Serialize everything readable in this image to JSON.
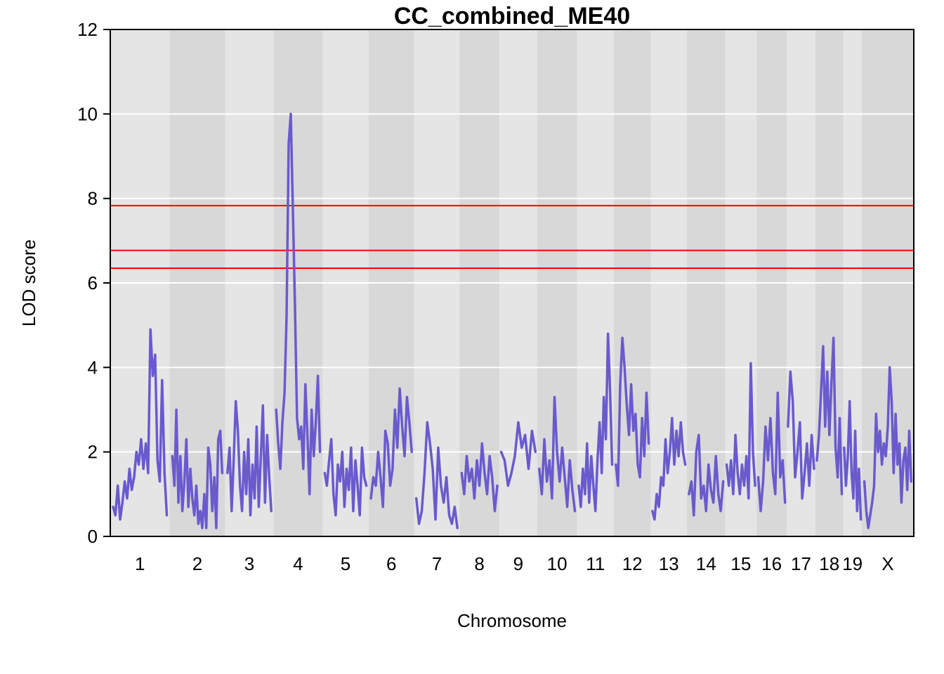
{
  "chart_data": {
    "type": "line",
    "title": "CC_combined_ME40",
    "xlabel": "Chromosome",
    "ylabel": "LOD score",
    "ylim": [
      0,
      12
    ],
    "yticks": [
      "0",
      "2",
      "4",
      "6",
      "8",
      "10",
      "12"
    ],
    "grid": true,
    "chromosomes": [
      "1",
      "2",
      "3",
      "4",
      "5",
      "6",
      "7",
      "8",
      "9",
      "10",
      "11",
      "12",
      "13",
      "14",
      "15",
      "16",
      "17",
      "18",
      "19",
      "X"
    ],
    "chromosome_widths": [
      195,
      182,
      160,
      160,
      152,
      149,
      150,
      130,
      125,
      130,
      122,
      120,
      120,
      125,
      104,
      98,
      95,
      91,
      61,
      171
    ],
    "thresholds": [
      7.83,
      6.77,
      6.35
    ],
    "series": [
      {
        "color": "#6a5acd",
        "profiles": [
          [
            0.7,
            0.5,
            1.2,
            0.4,
            0.8,
            1.3,
            0.9,
            1.6,
            1.1,
            1.4,
            2.0,
            1.7,
            2.3,
            1.6,
            2.2,
            1.5,
            4.9,
            3.8,
            4.3,
            1.8,
            1.3,
            3.7,
            1.5,
            0.5
          ],
          [
            1.9,
            1.2,
            3.0,
            0.8,
            1.9,
            0.6,
            1.3,
            2.3,
            0.7,
            1.6,
            0.9,
            0.5,
            1.2,
            0.3,
            0.6,
            0.2,
            1.0,
            0.2,
            2.1,
            1.7,
            0.6,
            1.4,
            0.2,
            2.3,
            2.5,
            1.5
          ],
          [
            1.5,
            2.1,
            0.6,
            1.8,
            3.2,
            2.5,
            1.2,
            0.6,
            2.0,
            1.0,
            2.3,
            0.5,
            1.7,
            0.9,
            2.6,
            0.7,
            1.9,
            3.1,
            0.8,
            2.4,
            1.4,
            0.6
          ],
          [
            3.0,
            2.2,
            1.6,
            2.7,
            3.4,
            5.2,
            9.3,
            10.0,
            7.8,
            5.5,
            2.8,
            2.3,
            2.6,
            1.6,
            3.6,
            2.4,
            1.0,
            3.0,
            1.9,
            2.7,
            3.8,
            2.0
          ],
          [
            1.5,
            1.2,
            1.8,
            2.3,
            1.0,
            0.5,
            1.7,
            1.3,
            2.0,
            0.7,
            1.6,
            1.1,
            2.1,
            0.6,
            1.8,
            1.2,
            0.5,
            2.1,
            1.4,
            1.2
          ],
          [
            0.9,
            1.4,
            1.2,
            2.0,
            1.4,
            0.7,
            2.5,
            2.2,
            1.2,
            1.6,
            3.0,
            2.1,
            3.5,
            2.6,
            1.9,
            3.3,
            2.7,
            2.0
          ],
          [
            0.9,
            0.3,
            0.6,
            1.5,
            2.7,
            2.2,
            1.6,
            0.4,
            2.1,
            1.2,
            0.8,
            1.4,
            0.5,
            0.3,
            0.7,
            0.2
          ],
          [
            1.5,
            1.0,
            1.9,
            1.3,
            1.6,
            0.9,
            1.8,
            1.2,
            2.2,
            1.5,
            1.0,
            1.9,
            1.4,
            0.6,
            1.2
          ],
          [
            2.0,
            1.8,
            1.2,
            1.5,
            1.9,
            2.7,
            2.1,
            2.4,
            1.6,
            2.5,
            2.0
          ],
          [
            1.6,
            1.0,
            2.3,
            1.3,
            1.8,
            0.9,
            3.3,
            2.0,
            1.3,
            2.1,
            1.4,
            0.7,
            1.8,
            1.1,
            0.6
          ],
          [
            1.2,
            0.7,
            1.6,
            1.0,
            2.2,
            0.8,
            1.9,
            1.2,
            0.6,
            1.8,
            2.7,
            1.5,
            3.3,
            2.3,
            4.8,
            3.5,
            1.7
          ],
          [
            1.7,
            1.2,
            3.6,
            4.7,
            4.0,
            3.1,
            2.4,
            3.6,
            2.5,
            2.9,
            1.7,
            1.4,
            2.8,
            1.9,
            3.4,
            2.2
          ],
          [
            0.6,
            0.4,
            1.0,
            0.7,
            1.4,
            1.2,
            2.3,
            1.5,
            2.0,
            2.8,
            1.7,
            2.5,
            1.9,
            2.7,
            2.0,
            1.7
          ],
          [
            1.0,
            1.3,
            0.5,
            2.0,
            2.4,
            0.9,
            1.2,
            0.6,
            1.7,
            1.1,
            0.8,
            1.9,
            1.0,
            0.6,
            1.3
          ],
          [
            1.7,
            1.2,
            1.8,
            1.0,
            2.4,
            1.5,
            1.0,
            1.7,
            1.2,
            1.9,
            0.9,
            4.1,
            2.0,
            1.2
          ],
          [
            1.4,
            0.6,
            1.3,
            2.6,
            1.8,
            2.8,
            1.5,
            1.0,
            3.4,
            1.4,
            1.8,
            0.8
          ],
          [
            2.6,
            3.9,
            3.2,
            1.4,
            2.0,
            2.7,
            0.9,
            1.5,
            2.2,
            1.2,
            2.4,
            1.6
          ],
          [
            1.8,
            2.4,
            3.4,
            4.5,
            2.6,
            3.9,
            2.4,
            3.6,
            4.7,
            2.1,
            1.4,
            2.8,
            1.0
          ],
          [
            2.1,
            1.2,
            1.9,
            3.2,
            1.5,
            0.9,
            2.5,
            0.6,
            1.6,
            0.4
          ],
          [
            1.3,
            0.6,
            0.2,
            0.5,
            0.8,
            1.2,
            2.9,
            2.0,
            2.5,
            1.7,
            2.2,
            1.9,
            2.6,
            4.0,
            3.2,
            1.5,
            2.9,
            1.7,
            2.2,
            0.8,
            1.8,
            2.1,
            1.1,
            2.5,
            1.3
          ]
        ]
      }
    ]
  }
}
